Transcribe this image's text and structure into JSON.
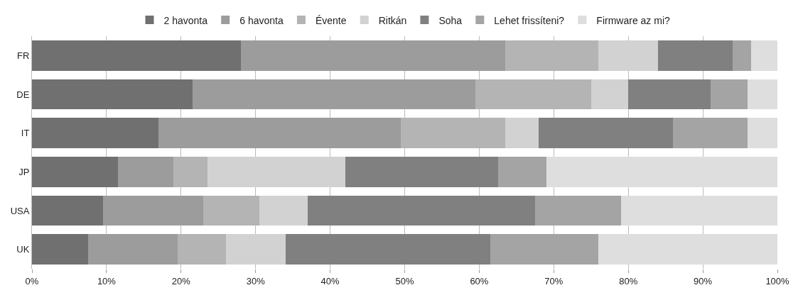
{
  "chart_data": {
    "type": "bar",
    "orientation": "horizontal",
    "stacked": true,
    "categories": [
      "FR",
      "DE",
      "IT",
      "JP",
      "USA",
      "UK"
    ],
    "series": [
      {
        "name": "2 havonta",
        "color": "#707070",
        "values": [
          28,
          21.5,
          17,
          11.5,
          9.5,
          7.5
        ]
      },
      {
        "name": "6 havonta",
        "color": "#9c9c9c",
        "values": [
          35.5,
          38,
          32.5,
          7.5,
          13.5,
          12
        ]
      },
      {
        "name": "Évente",
        "color": "#b4b4b4",
        "values": [
          12.5,
          15.5,
          14,
          4.5,
          7.5,
          6.5
        ]
      },
      {
        "name": "Ritkán",
        "color": "#d2d2d2",
        "values": [
          8,
          5,
          4.5,
          18.5,
          6.5,
          8
        ]
      },
      {
        "name": "Soha",
        "color": "#808080",
        "values": [
          10,
          11,
          18,
          20.5,
          30.5,
          27.5
        ]
      },
      {
        "name": "Lehet frissíteni?",
        "color": "#a4a4a4",
        "values": [
          2.5,
          5,
          10,
          6.5,
          11.5,
          14.5
        ]
      },
      {
        "name": "Firmware az mi?",
        "color": "#dedede",
        "values": [
          3.5,
          4,
          4,
          31,
          21,
          24
        ]
      }
    ],
    "xlim": [
      0,
      100
    ],
    "xticks": [
      {
        "value": 0,
        "label": "0%"
      },
      {
        "value": 10,
        "label": "10%"
      },
      {
        "value": 20,
        "label": "20%"
      },
      {
        "value": 30,
        "label": "30%"
      },
      {
        "value": 40,
        "label": "40%"
      },
      {
        "value": 50,
        "label": "50%"
      },
      {
        "value": 60,
        "label": "60%"
      },
      {
        "value": 70,
        "label": "70%"
      },
      {
        "value": 80,
        "label": "80%"
      },
      {
        "value": 90,
        "label": "90%"
      },
      {
        "value": 100,
        "label": "100%"
      }
    ],
    "grid": "x",
    "legend": "top"
  }
}
